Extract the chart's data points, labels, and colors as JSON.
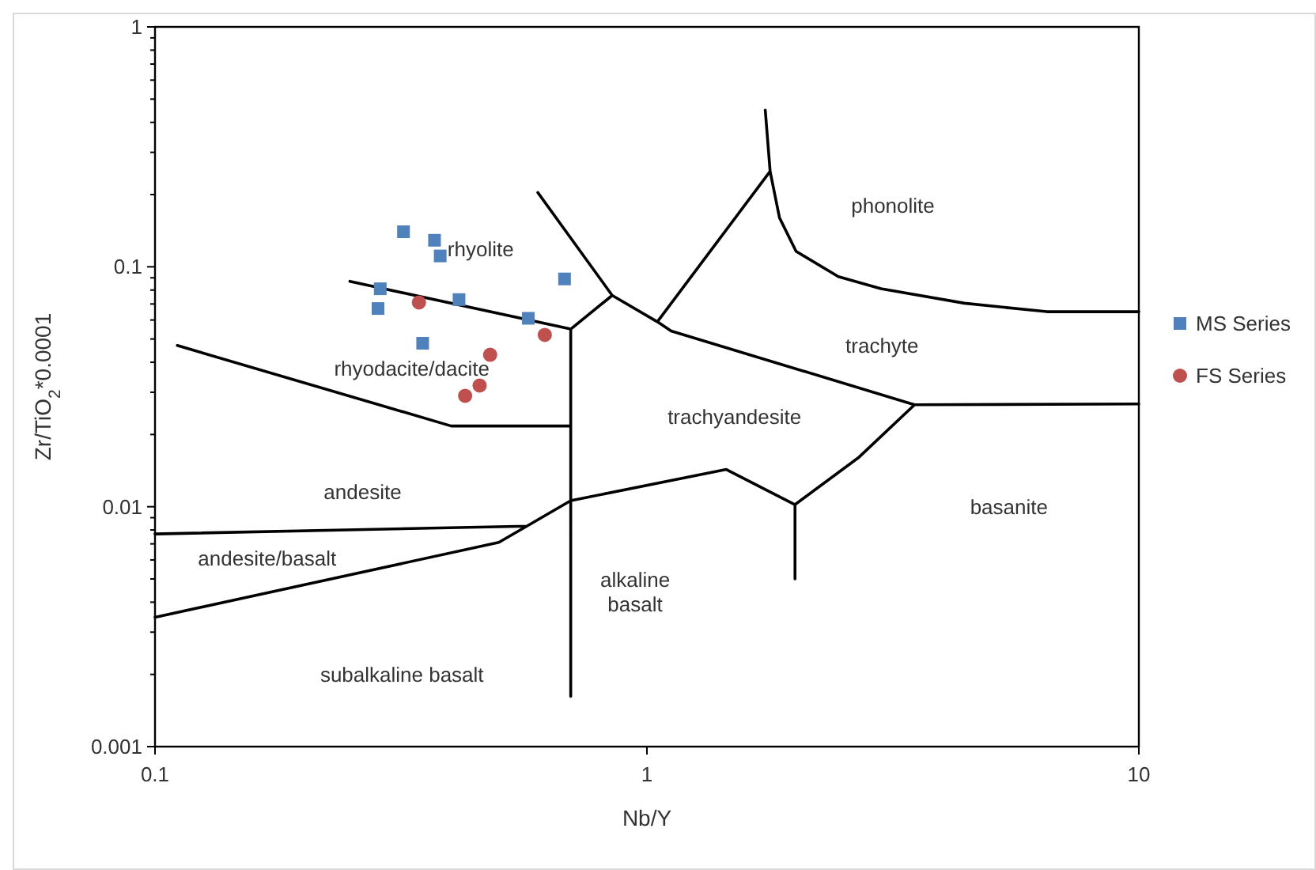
{
  "chart_data": {
    "type": "scatter",
    "xlabel": "Nb/Y",
    "ylabel": "Zr/TiO$_{2}$*0.0001",
    "log": "xy",
    "xlim": [
      0.1,
      10
    ],
    "ylim": [
      0.001,
      1
    ],
    "xticks": [
      0.1,
      1,
      10
    ],
    "yticks": [
      0.001,
      {
        "value": 0.002,
        "label": null
      },
      {
        "value": 0.003,
        "label": null
      },
      {
        "value": 0.004,
        "label": null
      },
      {
        "value": 0.005,
        "label": null
      },
      {
        "value": 0.006,
        "label": null
      },
      {
        "value": 0.007,
        "label": null
      },
      {
        "value": 0.008,
        "label": null
      },
      {
        "value": 0.009,
        "label": null
      },
      0.01,
      {
        "value": 0.02,
        "label": null
      },
      {
        "value": 0.03,
        "label": null
      },
      {
        "value": 0.04,
        "label": null
      },
      {
        "value": 0.05,
        "label": null
      },
      {
        "value": 0.06,
        "label": null
      },
      {
        "value": 0.07,
        "label": null
      },
      {
        "value": 0.08,
        "label": null
      },
      {
        "value": 0.09,
        "label": null
      },
      0.1,
      {
        "value": 0.2,
        "label": null
      },
      {
        "value": 0.3,
        "label": null
      },
      {
        "value": 0.4,
        "label": null
      },
      {
        "value": 0.5,
        "label": null
      },
      {
        "value": 0.6,
        "label": null
      },
      {
        "value": 0.7,
        "label": null
      },
      {
        "value": 0.8,
        "label": null
      },
      {
        "value": 0.9,
        "label": null
      },
      1
    ],
    "grid": false,
    "legend": "right",
    "series": [
      {
        "name": "MS Series",
        "marker": "square",
        "color": "#4f81bd",
        "x": [
          0.32,
          0.37,
          0.38,
          0.287,
          0.284,
          0.415,
          0.574,
          0.68,
          0.35
        ],
        "values": [
          0.14,
          0.129,
          0.111,
          0.081,
          0.067,
          0.073,
          0.061,
          0.089,
          0.048
        ]
      },
      {
        "name": "FS Series",
        "marker": "circle",
        "color": "#c0504d",
        "x": [
          0.344,
          0.48,
          0.457,
          0.427,
          0.62
        ],
        "values": [
          0.071,
          0.043,
          0.032,
          0.029,
          0.052
        ]
      },
      {
        "type": "line",
        "marker": "none",
        "color": "#000000",
        "x": [
          0.249,
          0.7,
          0.85,
          0.6,
          null,
          0.85,
          1.05,
          1.12,
          3.5,
          10,
          null,
          1.05,
          1.78,
          1.74,
          null,
          1.78,
          1.86,
          2.01,
          2.45,
          2.99,
          4.42,
          6.5,
          10,
          null,
          2.0,
          2.0,
          null,
          0.7,
          0.7,
          null,
          0.111,
          0.4,
          0.7,
          null,
          0.1,
          0.57,
          null,
          0.1,
          0.5,
          0.57,
          0.7,
          1.45,
          2.0,
          2.7,
          3.5
        ],
        "values": [
          0.087,
          0.055,
          0.076,
          0.204,
          null,
          0.076,
          0.059,
          0.054,
          0.0266,
          0.0268,
          null,
          0.059,
          0.25,
          0.45,
          null,
          0.25,
          0.16,
          0.116,
          0.091,
          0.081,
          0.0705,
          0.065,
          0.065,
          null,
          0.0102,
          0.005,
          null,
          0.055,
          0.00162,
          null,
          0.047,
          0.0217,
          0.0217,
          null,
          0.0077,
          0.0083,
          null,
          0.00346,
          0.0071,
          0.0083,
          0.0106,
          0.0143,
          0.0102,
          0.0161,
          0.0266
        ]
      }
    ],
    "annotations": [
      "rhyolite",
      "phonolite",
      "trachyte",
      "rhyodacite/dacite",
      "trachyandesite",
      "andesite",
      "basanite",
      "andesite/basalt",
      "alkaline\nbasalt",
      "subalkaline basalt"
    ]
  }
}
